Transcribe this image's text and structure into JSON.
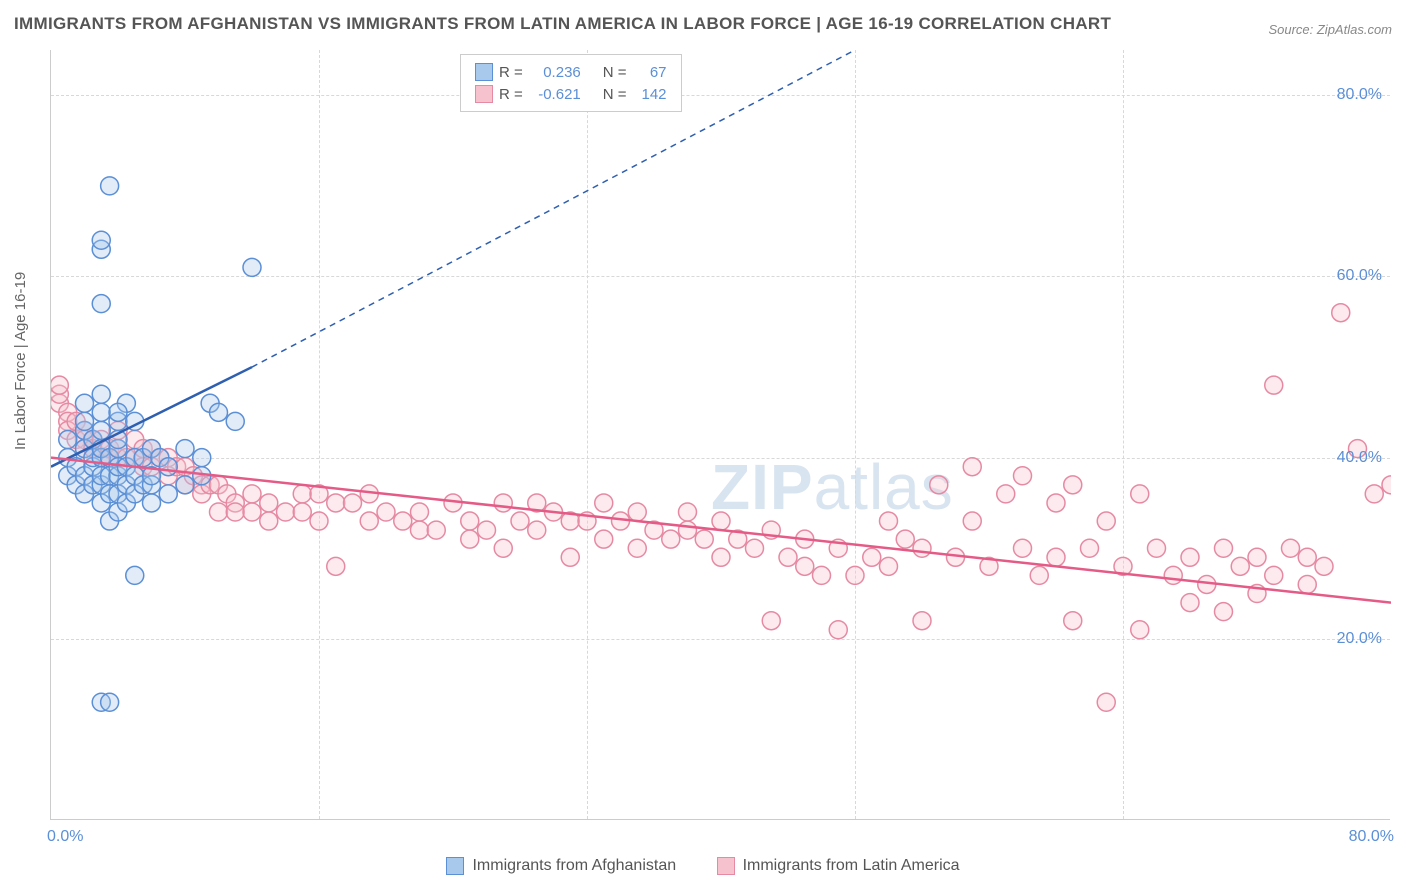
{
  "title": "IMMIGRANTS FROM AFGHANISTAN VS IMMIGRANTS FROM LATIN AMERICA IN LABOR FORCE | AGE 16-19 CORRELATION CHART",
  "source": "Source: ZipAtlas.com",
  "watermark_a": "ZIP",
  "watermark_b": "atlas",
  "y_axis_label": "In Labor Force | Age 16-19",
  "chart": {
    "type": "scatter",
    "xlim": [
      0,
      80
    ],
    "ylim": [
      0,
      85
    ],
    "x_ticks": [
      {
        "v": 0,
        "l": "0.0%"
      },
      {
        "v": 80,
        "l": "80.0%"
      }
    ],
    "y_ticks": [
      {
        "v": 20,
        "l": "20.0%"
      },
      {
        "v": 40,
        "l": "40.0%"
      },
      {
        "v": 60,
        "l": "60.0%"
      },
      {
        "v": 80,
        "l": "80.0%"
      }
    ],
    "x_grid": [
      16,
      32,
      48,
      64
    ],
    "y_grid": [
      20,
      40,
      60,
      80
    ],
    "plot_background": "#ffffff",
    "grid_color": "#d8d8d8",
    "series": [
      {
        "name": "Immigrants from Afghanistan",
        "color_fill": "#a8c8ec",
        "color_stroke": "#5b8fd6",
        "r_label": "R =",
        "r_value": "0.236",
        "n_label": "N =",
        "n_value": "67",
        "marker_radius": 9,
        "trend": {
          "x1": 0,
          "y1": 39,
          "x2": 12,
          "y2": 50,
          "x2_dash": 48,
          "y2_dash": 85,
          "color": "#2e5fb0",
          "width": 2.5
        },
        "points": [
          [
            1,
            38
          ],
          [
            1,
            40
          ],
          [
            1,
            42
          ],
          [
            1.5,
            37
          ],
          [
            1.5,
            39
          ],
          [
            2,
            36
          ],
          [
            2,
            38
          ],
          [
            2,
            41
          ],
          [
            2,
            43
          ],
          [
            2,
            44
          ],
          [
            2,
            46
          ],
          [
            2.5,
            37
          ],
          [
            2.5,
            39
          ],
          [
            2.5,
            40
          ],
          [
            2.5,
            42
          ],
          [
            3,
            35
          ],
          [
            3,
            37
          ],
          [
            3,
            38
          ],
          [
            3,
            40
          ],
          [
            3,
            41
          ],
          [
            3,
            43
          ],
          [
            3,
            45
          ],
          [
            3,
            47
          ],
          [
            3,
            57
          ],
          [
            3,
            63
          ],
          [
            3,
            64
          ],
          [
            3,
            13
          ],
          [
            3.5,
            13
          ],
          [
            3.5,
            33
          ],
          [
            3.5,
            36
          ],
          [
            3.5,
            38
          ],
          [
            3.5,
            40
          ],
          [
            3.5,
            70
          ],
          [
            4,
            34
          ],
          [
            4,
            36
          ],
          [
            4,
            38
          ],
          [
            4,
            39
          ],
          [
            4,
            41
          ],
          [
            4,
            42
          ],
          [
            4,
            44
          ],
          [
            4.5,
            35
          ],
          [
            4.5,
            37
          ],
          [
            4.5,
            39
          ],
          [
            4.5,
            46
          ],
          [
            5,
            36
          ],
          [
            5,
            38
          ],
          [
            5,
            40
          ],
          [
            5,
            27
          ],
          [
            5.5,
            37
          ],
          [
            5.5,
            40
          ],
          [
            6,
            35
          ],
          [
            6,
            37
          ],
          [
            6,
            38
          ],
          [
            6,
            41
          ],
          [
            6.5,
            40
          ],
          [
            7,
            36
          ],
          [
            7,
            39
          ],
          [
            8,
            37
          ],
          [
            8,
            41
          ],
          [
            9,
            38
          ],
          [
            9,
            40
          ],
          [
            9.5,
            46
          ],
          [
            10,
            45
          ],
          [
            11,
            44
          ],
          [
            12,
            61
          ],
          [
            5,
            44
          ],
          [
            4,
            45
          ]
        ]
      },
      {
        "name": "Immigrants from Latin America",
        "color_fill": "#f5c2ce",
        "color_stroke": "#e68aa3",
        "r_label": "R =",
        "r_value": "-0.621",
        "n_label": "N =",
        "n_value": "142",
        "marker_radius": 9,
        "trend": {
          "x1": 0,
          "y1": 40,
          "x2": 80,
          "y2": 24,
          "color": "#e45b87",
          "width": 2.5
        },
        "points": [
          [
            0.5,
            46
          ],
          [
            0.5,
            47
          ],
          [
            0.5,
            48
          ],
          [
            1,
            45
          ],
          [
            1,
            44
          ],
          [
            1,
            43
          ],
          [
            1.5,
            44
          ],
          [
            1.5,
            42
          ],
          [
            2,
            43
          ],
          [
            2,
            42
          ],
          [
            2,
            41
          ],
          [
            2.5,
            42
          ],
          [
            2.5,
            41
          ],
          [
            3,
            42
          ],
          [
            3,
            40
          ],
          [
            3.5,
            41
          ],
          [
            3.5,
            40
          ],
          [
            4,
            40
          ],
          [
            4,
            41
          ],
          [
            4,
            43
          ],
          [
            4.5,
            40
          ],
          [
            5,
            40
          ],
          [
            5,
            42
          ],
          [
            5.5,
            39
          ],
          [
            5.5,
            41
          ],
          [
            6,
            41
          ],
          [
            6,
            39
          ],
          [
            6.5,
            40
          ],
          [
            7,
            38
          ],
          [
            7,
            40
          ],
          [
            7.5,
            39
          ],
          [
            8,
            37
          ],
          [
            8,
            39
          ],
          [
            8.5,
            38
          ],
          [
            9,
            37
          ],
          [
            9,
            36
          ],
          [
            9.5,
            37
          ],
          [
            10,
            34
          ],
          [
            10,
            37
          ],
          [
            10.5,
            36
          ],
          [
            11,
            35
          ],
          [
            11,
            34
          ],
          [
            12,
            36
          ],
          [
            12,
            34
          ],
          [
            13,
            35
          ],
          [
            13,
            33
          ],
          [
            14,
            34
          ],
          [
            15,
            36
          ],
          [
            15,
            34
          ],
          [
            16,
            36
          ],
          [
            16,
            33
          ],
          [
            17,
            28
          ],
          [
            17,
            35
          ],
          [
            18,
            35
          ],
          [
            19,
            33
          ],
          [
            19,
            36
          ],
          [
            20,
            34
          ],
          [
            21,
            33
          ],
          [
            22,
            34
          ],
          [
            22,
            32
          ],
          [
            23,
            32
          ],
          [
            24,
            35
          ],
          [
            25,
            33
          ],
          [
            25,
            31
          ],
          [
            26,
            32
          ],
          [
            27,
            35
          ],
          [
            27,
            30
          ],
          [
            28,
            33
          ],
          [
            29,
            35
          ],
          [
            29,
            32
          ],
          [
            30,
            34
          ],
          [
            31,
            33
          ],
          [
            31,
            29
          ],
          [
            32,
            33
          ],
          [
            33,
            35
          ],
          [
            33,
            31
          ],
          [
            34,
            33
          ],
          [
            35,
            34
          ],
          [
            35,
            30
          ],
          [
            36,
            32
          ],
          [
            37,
            31
          ],
          [
            38,
            32
          ],
          [
            38,
            34
          ],
          [
            39,
            31
          ],
          [
            40,
            33
          ],
          [
            40,
            29
          ],
          [
            41,
            31
          ],
          [
            42,
            30
          ],
          [
            43,
            32
          ],
          [
            43,
            22
          ],
          [
            44,
            29
          ],
          [
            45,
            28
          ],
          [
            45,
            31
          ],
          [
            46,
            27
          ],
          [
            47,
            30
          ],
          [
            47,
            21
          ],
          [
            48,
            27
          ],
          [
            49,
            29
          ],
          [
            50,
            33
          ],
          [
            50,
            28
          ],
          [
            51,
            31
          ],
          [
            52,
            22
          ],
          [
            52,
            30
          ],
          [
            53,
            37
          ],
          [
            54,
            29
          ],
          [
            55,
            33
          ],
          [
            55,
            39
          ],
          [
            56,
            28
          ],
          [
            57,
            36
          ],
          [
            58,
            38
          ],
          [
            58,
            30
          ],
          [
            59,
            27
          ],
          [
            60,
            35
          ],
          [
            60,
            29
          ],
          [
            61,
            37
          ],
          [
            61,
            22
          ],
          [
            62,
            30
          ],
          [
            63,
            33
          ],
          [
            63,
            13
          ],
          [
            64,
            28
          ],
          [
            65,
            36
          ],
          [
            65,
            21
          ],
          [
            66,
            30
          ],
          [
            67,
            27
          ],
          [
            68,
            29
          ],
          [
            68,
            24
          ],
          [
            69,
            26
          ],
          [
            70,
            30
          ],
          [
            70,
            23
          ],
          [
            71,
            28
          ],
          [
            72,
            29
          ],
          [
            72,
            25
          ],
          [
            73,
            27
          ],
          [
            73,
            48
          ],
          [
            74,
            30
          ],
          [
            75,
            29
          ],
          [
            75,
            26
          ],
          [
            76,
            28
          ],
          [
            77,
            56
          ],
          [
            78,
            41
          ],
          [
            79,
            36
          ],
          [
            80,
            37
          ]
        ]
      }
    ]
  },
  "legend_bottom": [
    {
      "label": "Immigrants from Afghanistan",
      "fill": "#a8c8ec",
      "stroke": "#5b8fd6"
    },
    {
      "label": "Immigrants from Latin America",
      "fill": "#f5c2ce",
      "stroke": "#e68aa3"
    }
  ]
}
